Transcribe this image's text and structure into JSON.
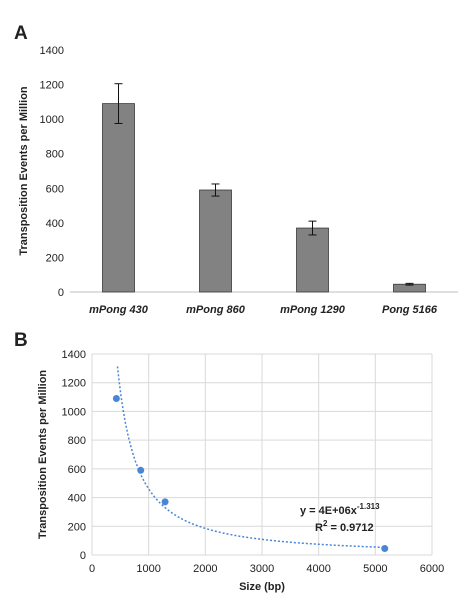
{
  "chart_data": [
    {
      "panel": "A",
      "type": "bar",
      "title": "",
      "xlabel": "",
      "ylabel": "Transposition  Events per Million",
      "categories": [
        "mPong 430",
        "mPong 860",
        "mPong 1290",
        "Pong 5166"
      ],
      "values": [
        1090,
        590,
        370,
        45
      ],
      "errors": [
        115,
        35,
        40,
        5
      ],
      "ylim": [
        0,
        1400
      ],
      "yticks": [
        "0",
        "200",
        "400",
        "600",
        "800",
        "1000",
        "1200",
        "1400"
      ],
      "grid": false,
      "bar_color": "#828282"
    },
    {
      "panel": "B",
      "type": "scatter",
      "title": "",
      "xlabel": "Size (bp)",
      "ylabel": "Transposition  Events per Million",
      "x": [
        430,
        860,
        1290,
        5166
      ],
      "y": [
        1090,
        590,
        370,
        45
      ],
      "xlim": [
        0,
        6000
      ],
      "ylim": [
        0,
        1400
      ],
      "xticks": [
        "0",
        "1000",
        "2000",
        "3000",
        "4000",
        "5000",
        "6000"
      ],
      "yticks": [
        "0",
        "200",
        "400",
        "600",
        "800",
        "1000",
        "1200",
        "1400"
      ],
      "grid": true,
      "point_color": "#4a86d8",
      "trendline": {
        "type": "power",
        "coef": 4000000,
        "exponent": -1.313,
        "equation_base": "y = 4E+06x",
        "equation_exp": "-1.313",
        "r2_base": "R",
        "r2_exp": "2",
        "r2_value": " = 0.9712",
        "color": "#4a86d8"
      }
    }
  ]
}
